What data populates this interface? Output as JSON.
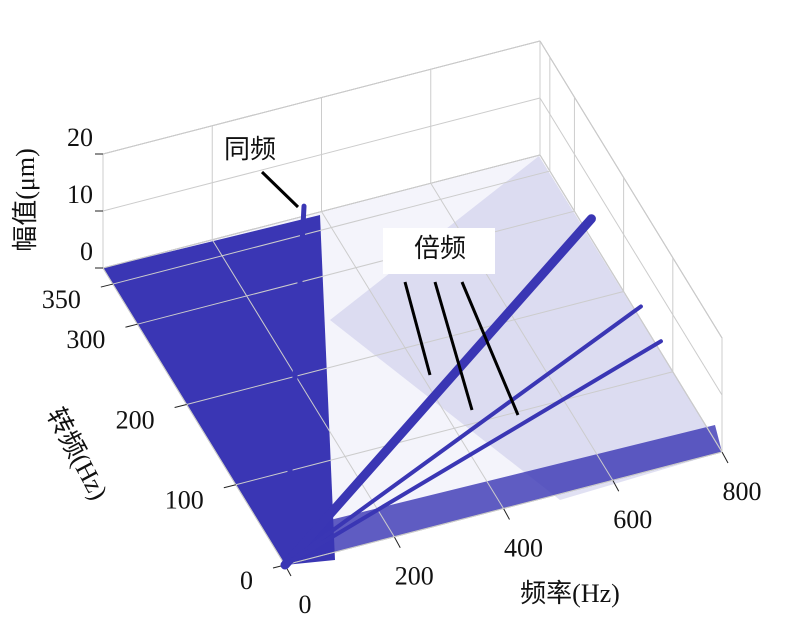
{
  "chart_data": {
    "type": "waterfall3d",
    "xlabel": "频率(Hz)",
    "ylabel": "转频(Hz)",
    "zlabel": "幅值(μm)",
    "xlim": [
      0,
      800
    ],
    "xticks": [
      0,
      200,
      400,
      600,
      800
    ],
    "ylim": [
      0,
      370
    ],
    "yticks": [
      0,
      100,
      200,
      300,
      350
    ],
    "zlim": [
      0,
      20
    ],
    "zticks": [
      0,
      10,
      20
    ],
    "color": "#3a36b4",
    "grid": true,
    "ridges": [
      {
        "x": [
          0,
          350
        ],
        "y": [
          0,
          350
        ],
        "z": [
          0,
          5
        ]
      },
      {
        "x": [
          0,
          814
        ],
        "y": [
          0,
          281
        ],
        "z": [
          0,
          1
        ]
      },
      {
        "x": [
          0,
          810
        ],
        "y": [
          0,
          176
        ],
        "z": [
          0,
          0.5
        ]
      },
      {
        "x": [
          0,
          808
        ],
        "y": [
          0,
          133
        ],
        "z": [
          0,
          0.5
        ]
      }
    ],
    "annotations": [
      {
        "text": "同频"
      },
      {
        "text": "倍频"
      }
    ]
  }
}
